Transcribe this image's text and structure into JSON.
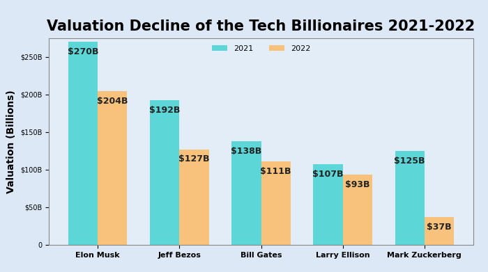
{
  "chart_data": {
    "type": "bar",
    "title": "Valuation Decline of the Tech Billionaires 2021-2022",
    "y_label": "Valuation (Billions)",
    "categories": [
      "Elon Musk",
      "Jeff Bezos",
      "Bill Gates",
      "Larry Ellison",
      "Mark Zuckerberg"
    ],
    "series": [
      {
        "name": "2021",
        "color": "#5dd6d8",
        "values": [
          270,
          192,
          138,
          107,
          125
        ],
        "value_labels": [
          "$270B",
          "$192B",
          "$138B",
          "$107B",
          "$125B"
        ]
      },
      {
        "name": "2022",
        "color": "#f9c27c",
        "values": [
          204,
          127,
          111,
          93,
          37
        ],
        "value_labels": [
          "$204B",
          "$127B",
          "$111B",
          "$93B",
          "$37B"
        ]
      }
    ],
    "ylim": [
      0,
      275
    ],
    "yticks": [
      0,
      {
        "value": 50,
        "label": "$50B"
      },
      {
        "value": 100,
        "label": "$100B"
      },
      {
        "value": 150,
        "label": "$150B"
      },
      {
        "value": 200,
        "label": "$200B"
      },
      {
        "value": 250,
        "label": "$250B"
      }
    ],
    "grid": false,
    "legend": "upper center",
    "data_labels": true
  }
}
